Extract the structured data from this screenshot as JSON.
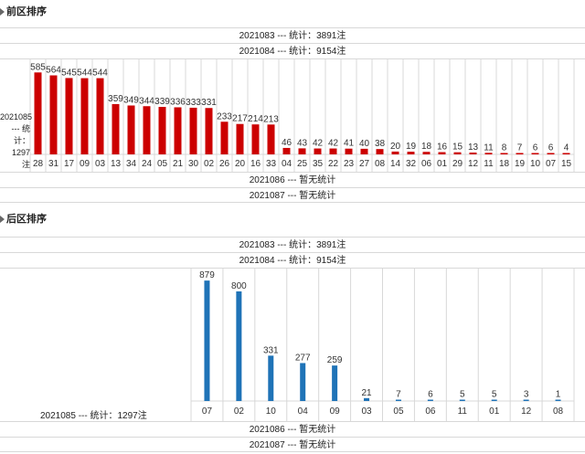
{
  "front": {
    "title": "前区排序",
    "stats_rows": [
      "2021083 --- 统计：3891注",
      "2021084 --- 统计：9154注"
    ],
    "side_label_lines": [
      "2021085",
      "--- 统",
      "计：1297",
      "注"
    ],
    "footer_rows": [
      "2021086 --- 暂无统计",
      "2021087 --- 暂无统计"
    ]
  },
  "back": {
    "title": "后区排序",
    "stats_rows": [
      "2021083 --- 统计：3891注",
      "2021084 --- 统计：9154注"
    ],
    "bottom_label": "2021085 --- 统计：1297注",
    "footer_rows": [
      "2021086 --- 暂无统计",
      "2021087 --- 暂无统计"
    ]
  },
  "colors": {
    "front_bar": "#cc0000",
    "back_bar": "#1f73b7",
    "grid": "#d8d8d8"
  },
  "chart_data": [
    {
      "type": "bar",
      "title": "",
      "categories": [
        "28",
        "31",
        "17",
        "09",
        "03",
        "13",
        "34",
        "24",
        "05",
        "21",
        "30",
        "02",
        "26",
        "20",
        "16",
        "33",
        "04",
        "25",
        "35",
        "22",
        "23",
        "27",
        "08",
        "14",
        "32",
        "06",
        "01",
        "29",
        "12",
        "11",
        "18",
        "19",
        "10",
        "07",
        "15"
      ],
      "values": [
        585,
        564,
        545,
        544,
        544,
        359,
        349,
        344,
        339,
        336,
        333,
        331,
        233,
        217,
        214,
        213,
        46,
        43,
        42,
        42,
        41,
        40,
        38,
        20,
        19,
        18,
        16,
        15,
        13,
        11,
        8,
        7,
        6,
        6,
        4
      ],
      "xlabel": "",
      "ylabel": "",
      "ylim": [
        0,
        600
      ],
      "grid": true,
      "legend": "none"
    },
    {
      "type": "bar",
      "title": "",
      "categories": [
        "07",
        "02",
        "10",
        "04",
        "09",
        "03",
        "05",
        "06",
        "11",
        "01",
        "12",
        "08"
      ],
      "values": [
        879,
        800,
        331,
        277,
        259,
        21,
        7,
        6,
        5,
        5,
        3,
        1
      ],
      "xlabel": "",
      "ylabel": "",
      "ylim": [
        0,
        900
      ],
      "grid": true,
      "legend": "none"
    }
  ]
}
